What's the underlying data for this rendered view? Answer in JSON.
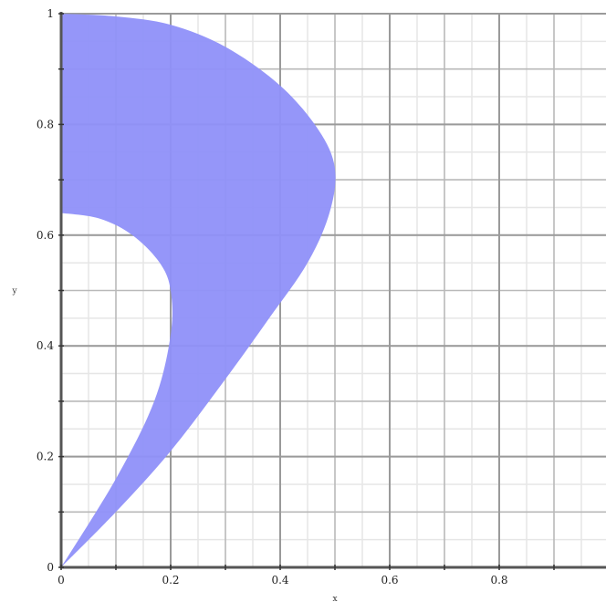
{
  "chart_data": {
    "type": "area",
    "title": "",
    "xlabel": "x",
    "ylabel": "y",
    "xlim": [
      0,
      1
    ],
    "ylim": [
      0,
      1
    ],
    "grid": true,
    "minor_grid": true,
    "legend": "none",
    "x_ticks": [
      "0",
      "0.2",
      "0.4",
      "0.6",
      "0.8"
    ],
    "y_ticks": [
      "0",
      "0.2",
      "0.4",
      "0.6",
      "0.8",
      "1"
    ],
    "fill_color": "#8f90f9",
    "region": {
      "outer_boundary": [
        {
          "x": 0.0,
          "y": 1.0
        },
        {
          "x": 0.1,
          "y": 0.995
        },
        {
          "x": 0.2,
          "y": 0.98
        },
        {
          "x": 0.3,
          "y": 0.94
        },
        {
          "x": 0.4,
          "y": 0.87
        },
        {
          "x": 0.47,
          "y": 0.79
        },
        {
          "x": 0.5,
          "y": 0.72
        },
        {
          "x": 0.49,
          "y": 0.64
        },
        {
          "x": 0.45,
          "y": 0.55
        },
        {
          "x": 0.38,
          "y": 0.45
        },
        {
          "x": 0.3,
          "y": 0.34
        },
        {
          "x": 0.2,
          "y": 0.21
        },
        {
          "x": 0.1,
          "y": 0.1
        },
        {
          "x": 0.0,
          "y": 0.0
        }
      ],
      "inner_boundary": [
        {
          "x": 0.0,
          "y": 0.0
        },
        {
          "x": 0.1,
          "y": 0.16
        },
        {
          "x": 0.17,
          "y": 0.3
        },
        {
          "x": 0.2,
          "y": 0.42
        },
        {
          "x": 0.2,
          "y": 0.5
        },
        {
          "x": 0.18,
          "y": 0.55
        },
        {
          "x": 0.13,
          "y": 0.6
        },
        {
          "x": 0.07,
          "y": 0.63
        },
        {
          "x": 0.0,
          "y": 0.64
        }
      ]
    }
  }
}
